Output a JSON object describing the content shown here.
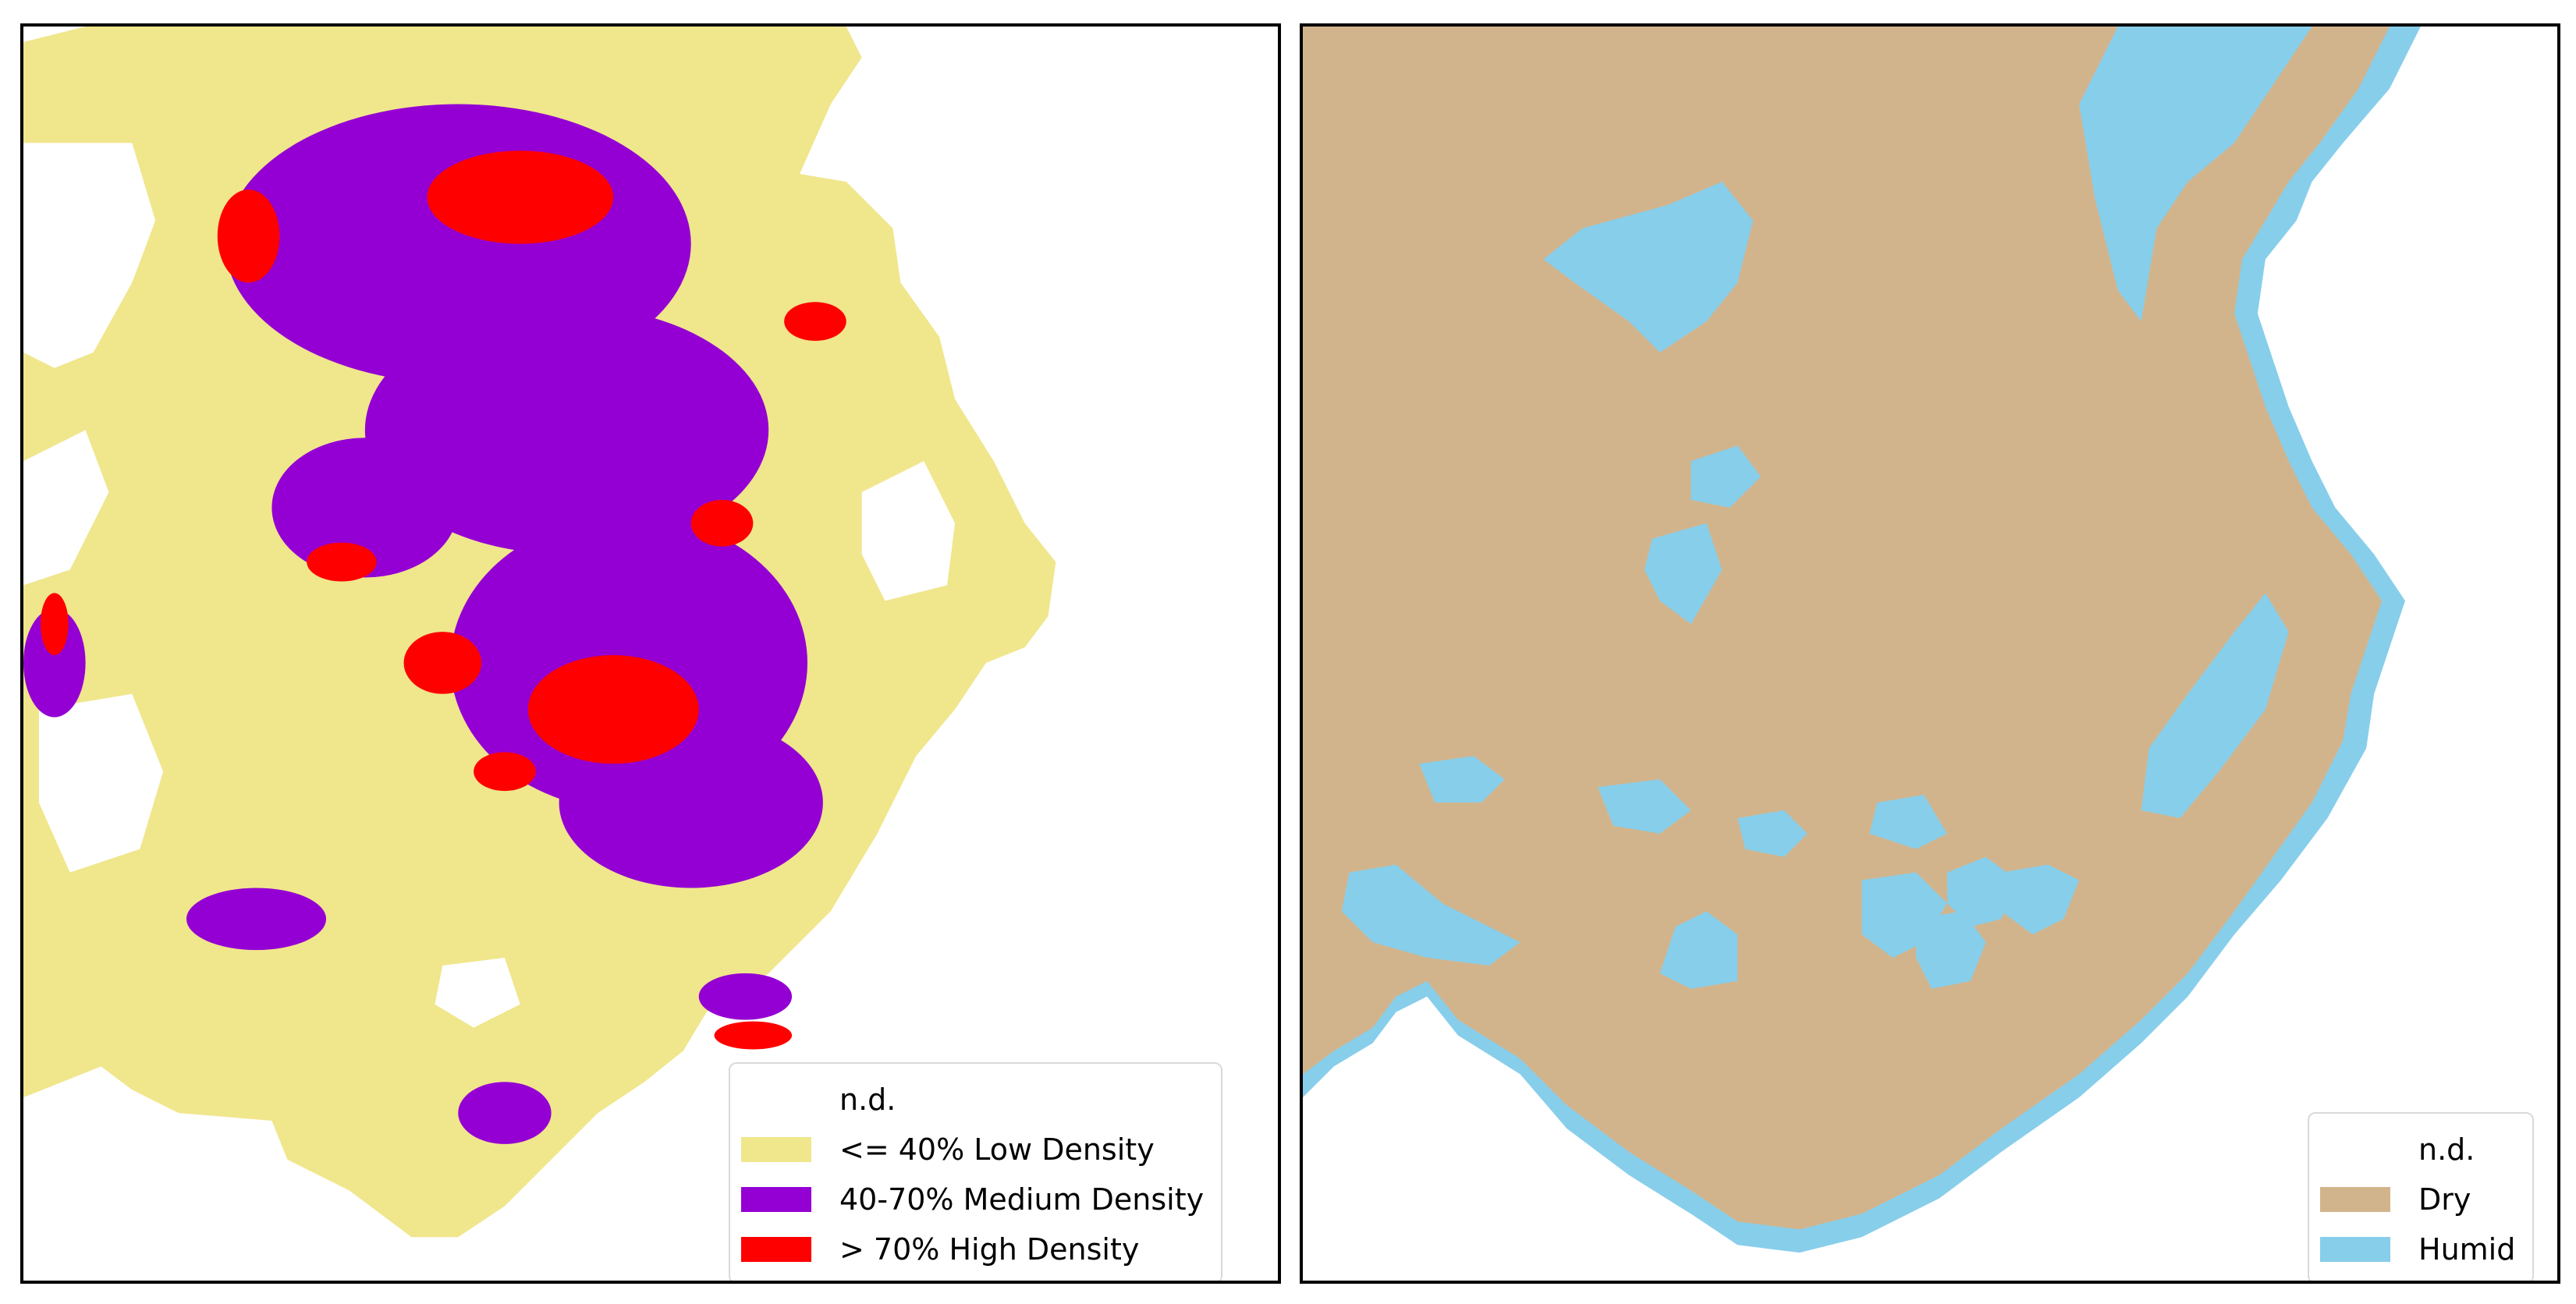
{
  "left_map": {
    "legend": [
      {
        "label": "n.d.",
        "color": "#ffffff"
      },
      {
        "label": "<= 40% Low Density",
        "color": "#f0e68c"
      },
      {
        "label": "40-70% Medium Density",
        "color": "#9400d3"
      },
      {
        "label": "> 70% High Density",
        "color": "#ff0000"
      }
    ]
  },
  "right_map": {
    "legend": [
      {
        "label": "n.d.",
        "color": "#ffffff"
      },
      {
        "label": "Dry",
        "color": "#d2b48c"
      },
      {
        "label": "Humid",
        "color": "#87ceeb"
      }
    ]
  }
}
